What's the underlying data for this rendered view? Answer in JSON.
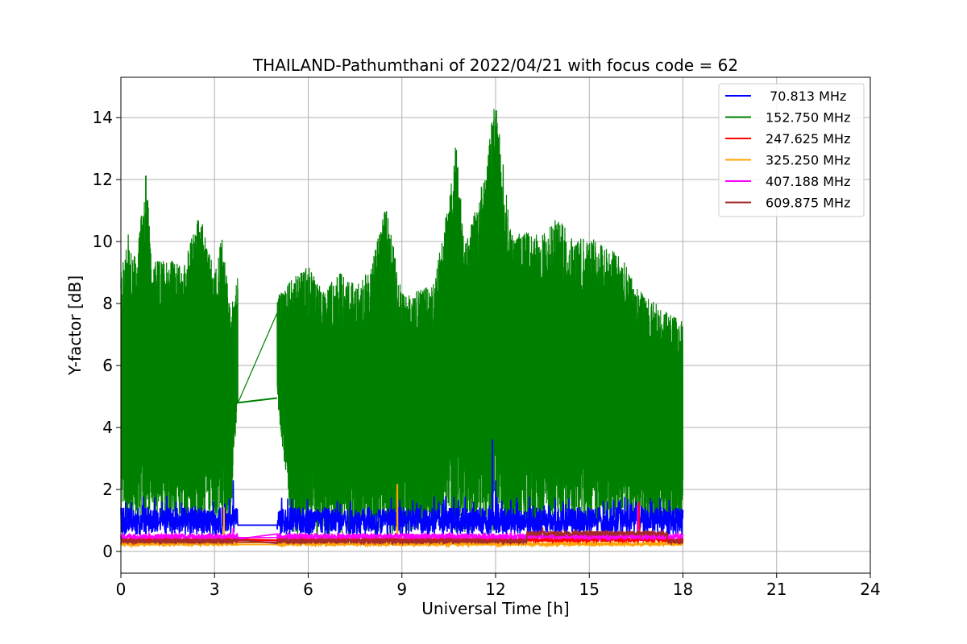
{
  "chart_data": {
    "type": "line",
    "title": "THAILAND-Pathumthani of 2022/04/21 with focus code = 62",
    "xlabel": "Universal Time [h]",
    "ylabel": "Y-factor [dB]",
    "xlim": [
      0,
      24
    ],
    "ylim": [
      -0.7,
      15.3
    ],
    "xticks": [
      0,
      3,
      6,
      9,
      12,
      15,
      18,
      21,
      24
    ],
    "yticks": [
      0,
      2,
      4,
      6,
      8,
      10,
      12,
      14
    ],
    "grid": true,
    "legend_position": "top-right",
    "observation_gap": [
      3.75,
      5.0
    ],
    "series": [
      {
        "name": " 70.813 MHz",
        "color": "#0000ff",
        "baseline": 0.8,
        "noise_amplitude": 0.9,
        "peaks": [
          [
            3.6,
            2.3
          ],
          [
            11.9,
            3.6
          ],
          [
            12.0,
            2.3
          ],
          [
            16.5,
            1.6
          ],
          [
            3.75,
            0.85
          ],
          [
            5.0,
            0.85
          ]
        ]
      },
      {
        "name": "152.750 MHz",
        "color": "#008000",
        "envelope_x": [
          0,
          0.25,
          0.5,
          0.8,
          1.0,
          1.5,
          2.0,
          2.5,
          3.0,
          3.25,
          3.5,
          3.75,
          5.0,
          5.5,
          6.0,
          6.5,
          7.0,
          7.5,
          8.0,
          8.5,
          9.0,
          9.5,
          10.0,
          10.5,
          10.75,
          11.0,
          11.5,
          12.0,
          12.5,
          13.0,
          13.5,
          14.0,
          14.5,
          15.0,
          15.5,
          16.0,
          16.5,
          17.0,
          17.5,
          18.0
        ],
        "envelope_top": [
          9.0,
          10.3,
          9.3,
          12.4,
          9.3,
          9.5,
          9.2,
          11.0,
          9.0,
          10.2,
          7.8,
          8.9,
          8.2,
          8.8,
          9.2,
          8.4,
          9.0,
          8.6,
          9.1,
          11.2,
          8.3,
          8.4,
          8.6,
          11.3,
          13.3,
          9.8,
          11.5,
          14.6,
          10.2,
          10.3,
          10.2,
          10.8,
          10.0,
          10.2,
          9.8,
          9.6,
          8.5,
          8.1,
          7.7,
          7.4
        ],
        "envelope_bottom": [
          0.8,
          0.8,
          0.9,
          0.8,
          0.9,
          0.8,
          0.8,
          0.7,
          0.9,
          0.9,
          0.8,
          4.8,
          4.95,
          0.5,
          0.4,
          0.4,
          0.4,
          0.5,
          0.5,
          0.4,
          0.6,
          0.7,
          0.7,
          0.6,
          0.6,
          0.6,
          0.7,
          0.5,
          0.6,
          0.7,
          0.8,
          0.8,
          0.9,
          0.8,
          0.9,
          0.9,
          0.9,
          0.8,
          0.8,
          0.8
        ]
      },
      {
        "name": "247.625 MHz",
        "color": "#ff0000",
        "baseline": 0.35,
        "noise_amplitude": 0.15,
        "peaks": [
          [
            16.6,
            1.6
          ]
        ]
      },
      {
        "name": "325.250 MHz",
        "color": "#ffa500",
        "baseline": 0.22,
        "noise_amplitude": 0.12,
        "peaks": [
          [
            3.3,
            1.4
          ],
          [
            8.85,
            2.15
          ]
        ]
      },
      {
        "name": "407.188 MHz",
        "color": "#ff00ff",
        "baseline": 0.45,
        "noise_amplitude": 0.18,
        "peaks": [
          [
            3.6,
            0.75
          ],
          [
            16.55,
            1.5
          ]
        ]
      },
      {
        "name": "609.875 MHz",
        "color": "#a52a2a",
        "baseline": 0.3,
        "noise_amplitude": 0.16,
        "peaks": [
          [
            13.5,
            0.75
          ],
          [
            16.6,
            0.7
          ]
        ]
      }
    ]
  }
}
